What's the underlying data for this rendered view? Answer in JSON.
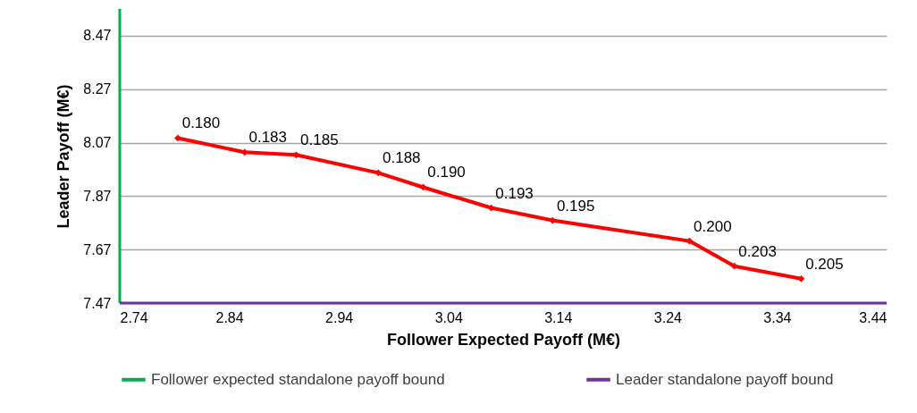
{
  "chart_data": {
    "type": "line",
    "xlabel": "Follower Expected Payoff (M€)",
    "ylabel": "Leader Payoff (M€)",
    "xlim": [
      2.74,
      3.44
    ],
    "xticks": [
      2.74,
      2.84,
      2.94,
      3.04,
      3.14,
      3.24,
      3.34,
      3.44
    ],
    "ylim": [
      7.47,
      8.57
    ],
    "yticks": [
      7.47,
      7.67,
      7.87,
      8.07,
      8.27,
      8.47
    ],
    "grid": "y",
    "legend": "bottom",
    "marker": "diamond",
    "line_style": "solid",
    "series": [
      {
        "color": "#ff0000",
        "x": [
          2.793,
          2.854,
          2.901,
          2.976,
          3.017,
          3.079,
          3.135,
          3.26,
          3.301,
          3.362
        ],
        "values": [
          8.087,
          8.034,
          8.024,
          7.957,
          7.903,
          7.826,
          7.779,
          7.702,
          7.608,
          7.561
        ]
      },
      {
        "name": "Follower expected standalone payoff bound",
        "color": "#00b050",
        "marker": "none",
        "x": [
          2.74,
          2.74
        ],
        "values": [
          7.47,
          8.57
        ]
      },
      {
        "name": "Leader standalone payoff bound",
        "color": "#7030a0",
        "marker": "none",
        "x": [
          2.74,
          3.44
        ],
        "values": [
          7.47,
          7.47
        ]
      }
    ],
    "annotations": [
      {
        "text": "0.180",
        "x": 2.793,
        "y": 8.087
      },
      {
        "text": "0.183",
        "x": 2.854,
        "y": 8.034
      },
      {
        "text": "0.185",
        "x": 2.901,
        "y": 8.024
      },
      {
        "text": "0.188",
        "x": 2.976,
        "y": 7.957
      },
      {
        "text": "0.190",
        "x": 3.017,
        "y": 7.903
      },
      {
        "text": "0.193",
        "x": 3.079,
        "y": 7.826
      },
      {
        "text": "0.195",
        "x": 3.135,
        "y": 7.779
      },
      {
        "text": "0.200",
        "x": 3.26,
        "y": 7.702
      },
      {
        "text": "0.203",
        "x": 3.301,
        "y": 7.608
      },
      {
        "text": "0.205",
        "x": 3.362,
        "y": 7.561
      }
    ]
  }
}
